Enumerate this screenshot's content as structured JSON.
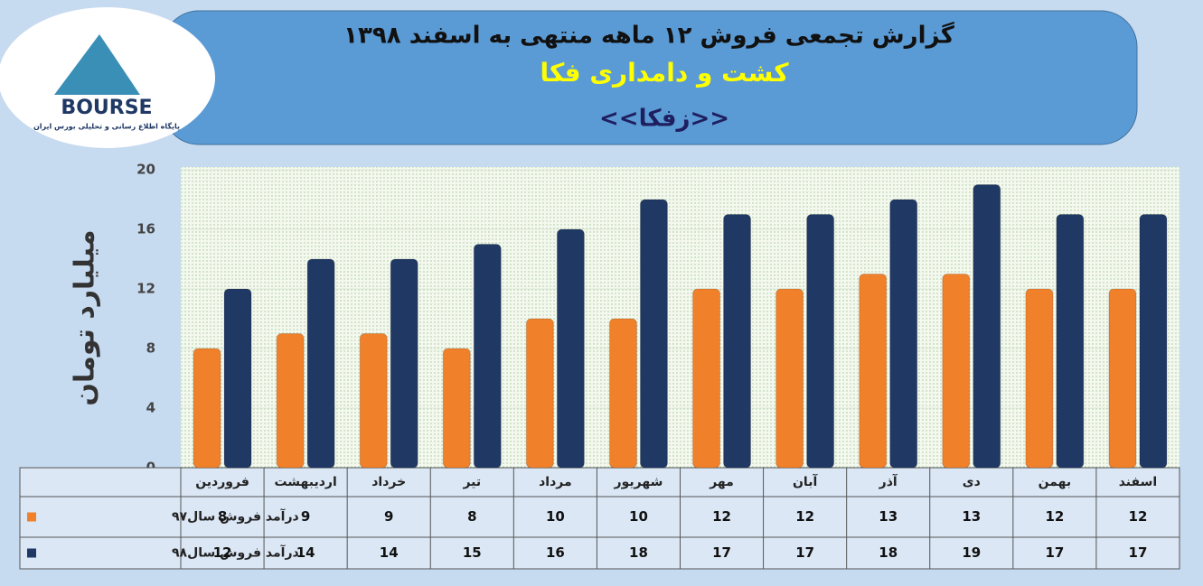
{
  "logo": {
    "text": "BOURSE",
    "tagline": "پایگاه اطلاع رسانی و تحلیلی بورس ایران"
  },
  "chart_data": {
    "type": "bar",
    "title": "گزارش تجمعی فروش  ۱۲ ماهه منتهی به اسفند ۱۳۹۸",
    "subtitle": "کشت و دامداری فکا",
    "symbol": "<<زفکا>>",
    "y_label": "میلیارد تومان",
    "categories": [
      "فروردین",
      "اردیبهشت",
      "خرداد",
      "تیر",
      "مرداد",
      "شهریور",
      "مهر",
      "آبان",
      "آذر",
      "دی",
      "بهمن",
      "اسفند"
    ],
    "series": [
      {
        "name": "درآمد فروش سال۹۷",
        "color": "#f0802a",
        "values": [
          8,
          9,
          9,
          8,
          10,
          10,
          12,
          12,
          13,
          13,
          12,
          12
        ]
      },
      {
        "name": "درآمد فروش سال۹۸",
        "color": "#1f3864",
        "values": [
          12,
          14,
          14,
          15,
          16,
          18,
          17,
          17,
          18,
          19,
          17,
          17
        ]
      }
    ],
    "ylim": [
      0,
      20
    ],
    "yticks": [
      0,
      4,
      8,
      12,
      16,
      20
    ],
    "grid": true
  }
}
